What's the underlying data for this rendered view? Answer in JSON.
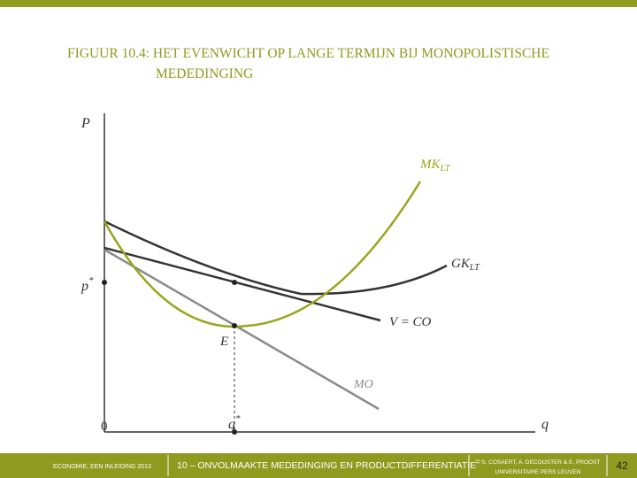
{
  "header": {
    "title": [
      "FIGUUR 10.4: HET EVENWICHT OP LANGE TERMIJN BIJ MONOPOLISTISCHE",
      "MEDEDINGING"
    ]
  },
  "diagram": {
    "axis_y": "P",
    "axis_x": "q",
    "origin": "0",
    "p_star": {
      "text": "p",
      "sup": "*"
    },
    "q_star": {
      "text": "q",
      "sup": "*"
    },
    "point_e": "E",
    "curves": {
      "mk": {
        "text": "MK",
        "sub": "LT"
      },
      "gk": {
        "text": "GK",
        "sub": "LT"
      },
      "demand": "V = CO",
      "mo": "MO"
    }
  },
  "footer": {
    "book": "ECONOMIE, EEN INLEIDING 2013",
    "chapter": "10 – ONVOLMAAKTE MEDEDINGING EN PRODUCTDIFFERENTIATIE",
    "authors": [
      "© S. COSAERT, A. DECOOSTER & E. PROOST",
      "UNIVERSITAIRE PERS LEUVEN"
    ],
    "page": "42"
  }
}
